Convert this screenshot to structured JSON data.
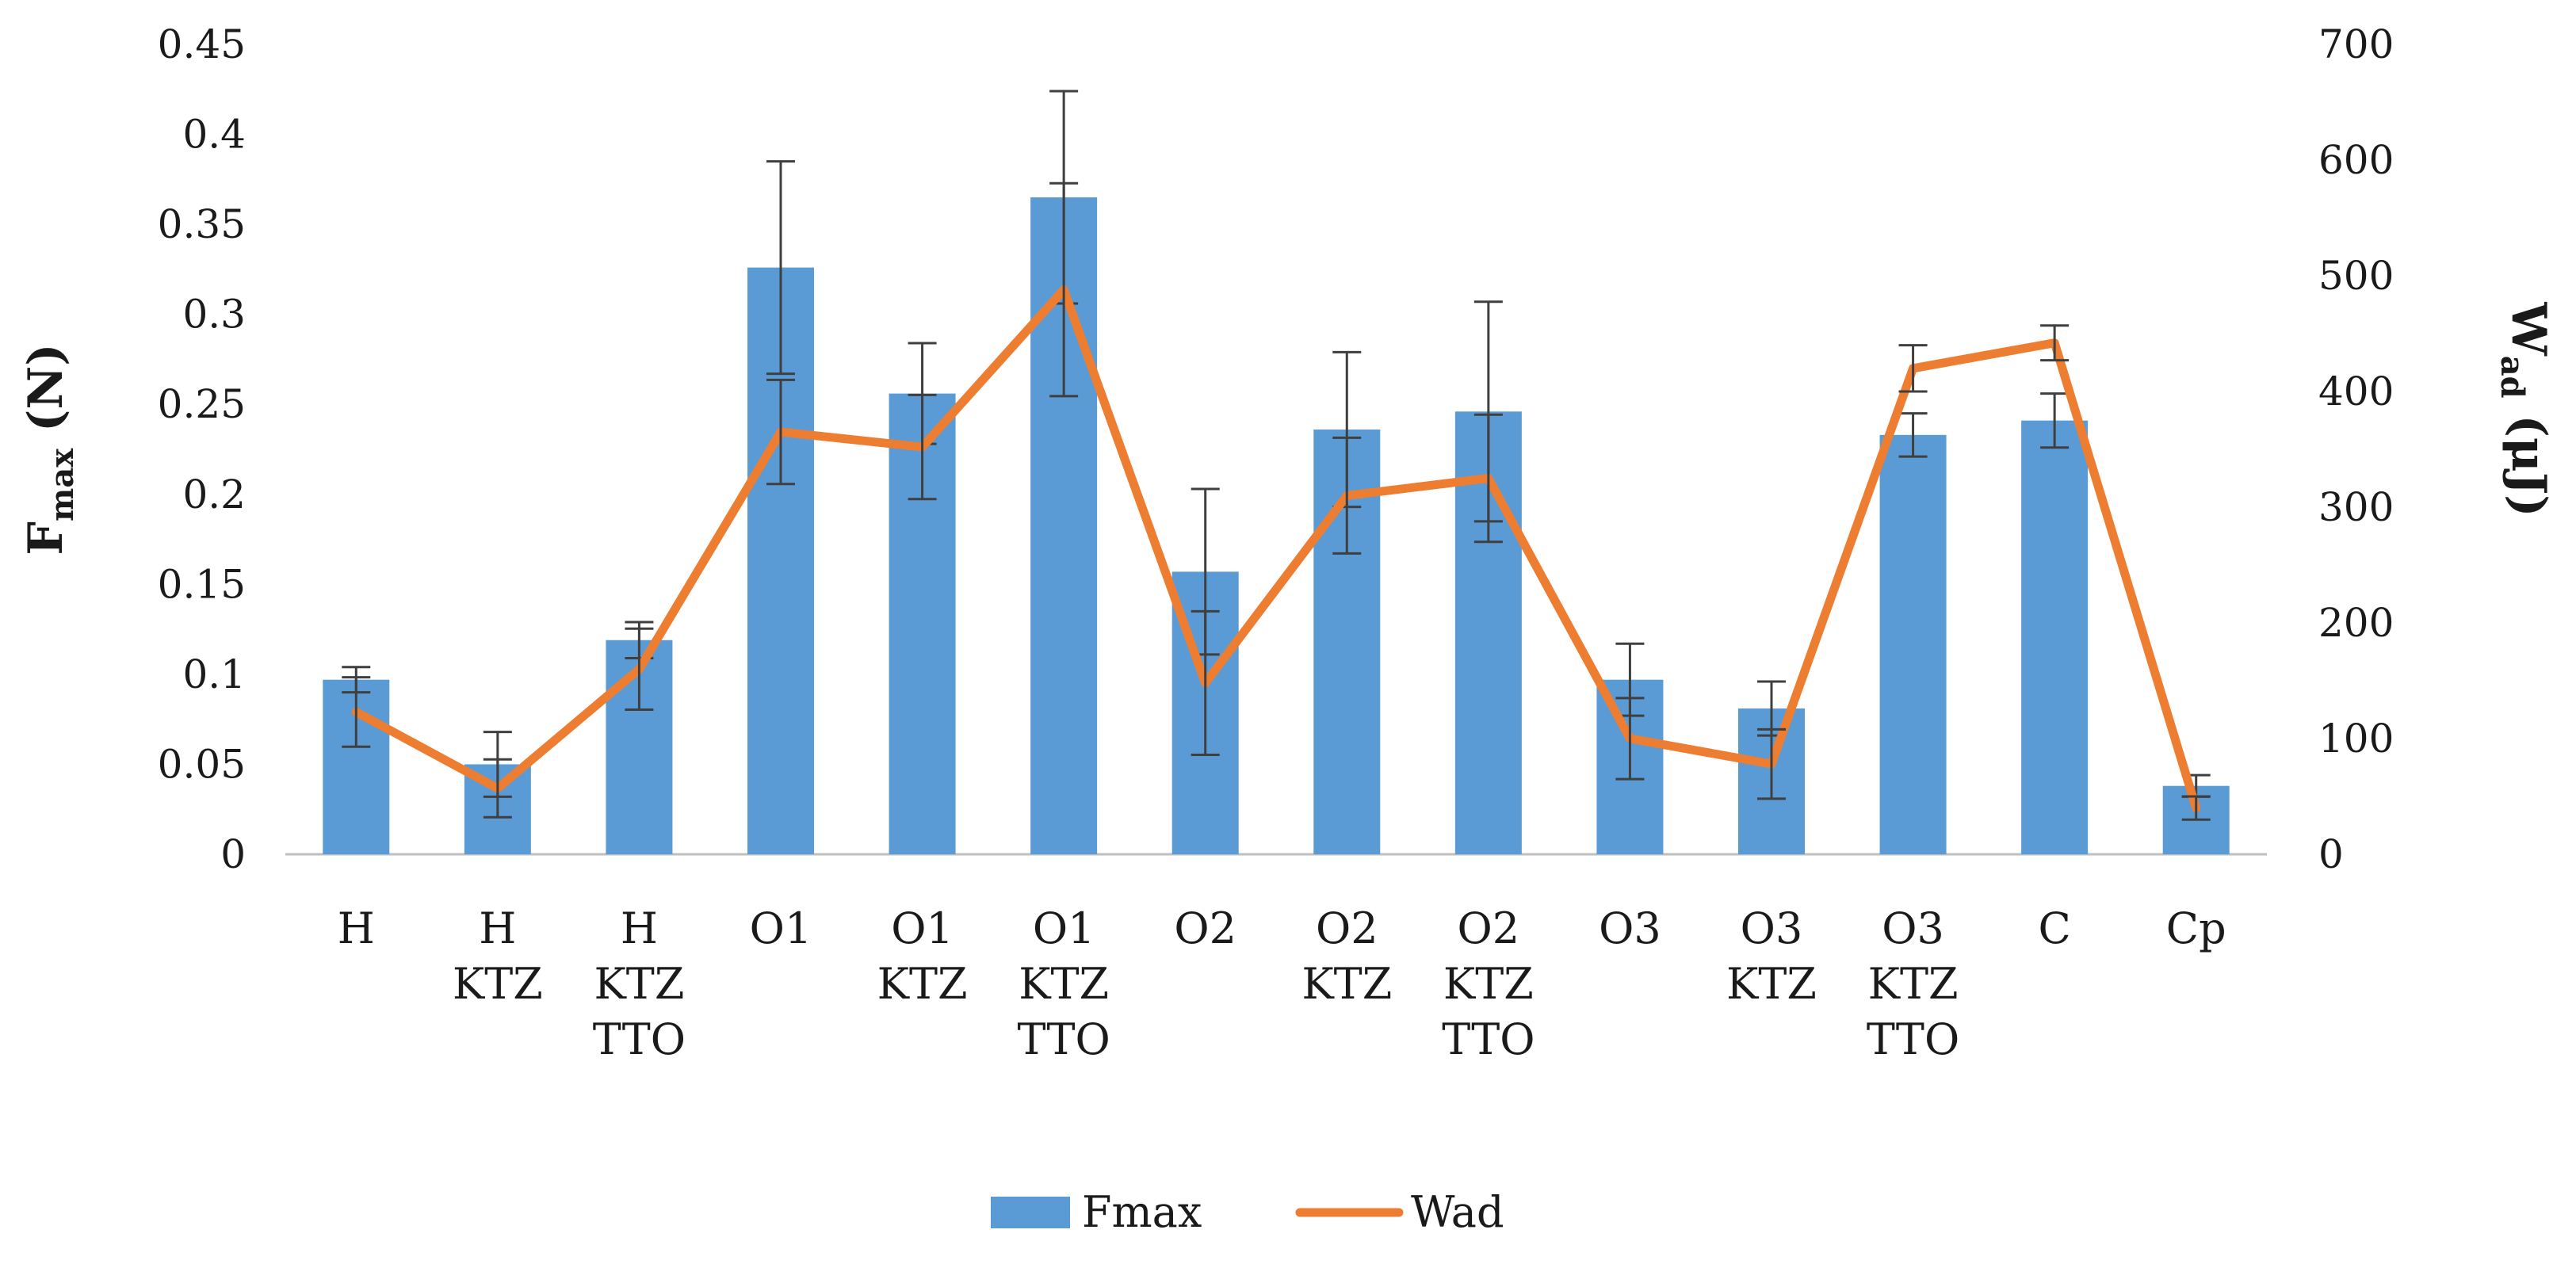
{
  "chart_data": {
    "type": "bar",
    "categories": [
      [
        "H"
      ],
      [
        "H",
        "KTZ"
      ],
      [
        "H",
        "KTZ",
        "TTO"
      ],
      [
        "O1"
      ],
      [
        "O1",
        "KTZ"
      ],
      [
        "O1",
        "KTZ",
        "TTO"
      ],
      [
        "O2"
      ],
      [
        "O2",
        "KTZ"
      ],
      [
        "O2",
        "KTZ",
        "TTO"
      ],
      [
        "O3"
      ],
      [
        "O3",
        "KTZ"
      ],
      [
        "O3",
        "KTZ",
        "TTO"
      ],
      [
        "C"
      ],
      [
        "Cp"
      ]
    ],
    "series": [
      {
        "name": "Fmax",
        "kind": "bar",
        "axis": "left",
        "color": "#5B9BD5",
        "values": [
          0.097,
          0.05,
          0.119,
          0.326,
          0.256,
          0.365,
          0.157,
          0.236,
          0.246,
          0.097,
          0.081,
          0.233,
          0.241,
          0.038
        ],
        "errors": [
          0.007,
          0.018,
          0.01,
          0.059,
          0.028,
          0.059,
          0.046,
          0.043,
          0.061,
          0.02,
          0.015,
          0.012,
          0.015,
          0.006
        ]
      },
      {
        "name": "Wad",
        "kind": "line",
        "axis": "right",
        "color": "#ED7D31",
        "values": [
          123,
          57,
          160,
          365,
          352,
          488,
          148,
          310,
          325,
          100,
          78,
          420,
          442,
          40
        ],
        "errors": [
          30,
          25,
          35,
          45,
          45,
          92,
          62,
          50,
          55,
          35,
          30,
          20,
          15,
          10
        ]
      }
    ],
    "y_left": {
      "label_main": "F",
      "label_sub": "max",
      "label_unit": " (N)",
      "lim": [
        0,
        0.45
      ],
      "ticks": [
        "0",
        "0.05",
        "0.1",
        "0.15",
        "0.2",
        "0.25",
        "0.3",
        "0.35",
        "0.4",
        "0.45"
      ],
      "tick_values": [
        0,
        0.05,
        0.1,
        0.15,
        0.2,
        0.25,
        0.3,
        0.35,
        0.4,
        0.45
      ]
    },
    "y_right": {
      "label_main": "W",
      "label_sub": "ad",
      "label_unit": " (μJ)",
      "lim": [
        0,
        700
      ],
      "ticks": [
        "0",
        "100",
        "200",
        "300",
        "400",
        "500",
        "600",
        "700"
      ],
      "tick_values": [
        0,
        100,
        200,
        300,
        400,
        500,
        600,
        700
      ]
    },
    "grid": false,
    "legend": {
      "position": "bottom-center",
      "entries": [
        "Fmax",
        "Wad"
      ]
    }
  }
}
